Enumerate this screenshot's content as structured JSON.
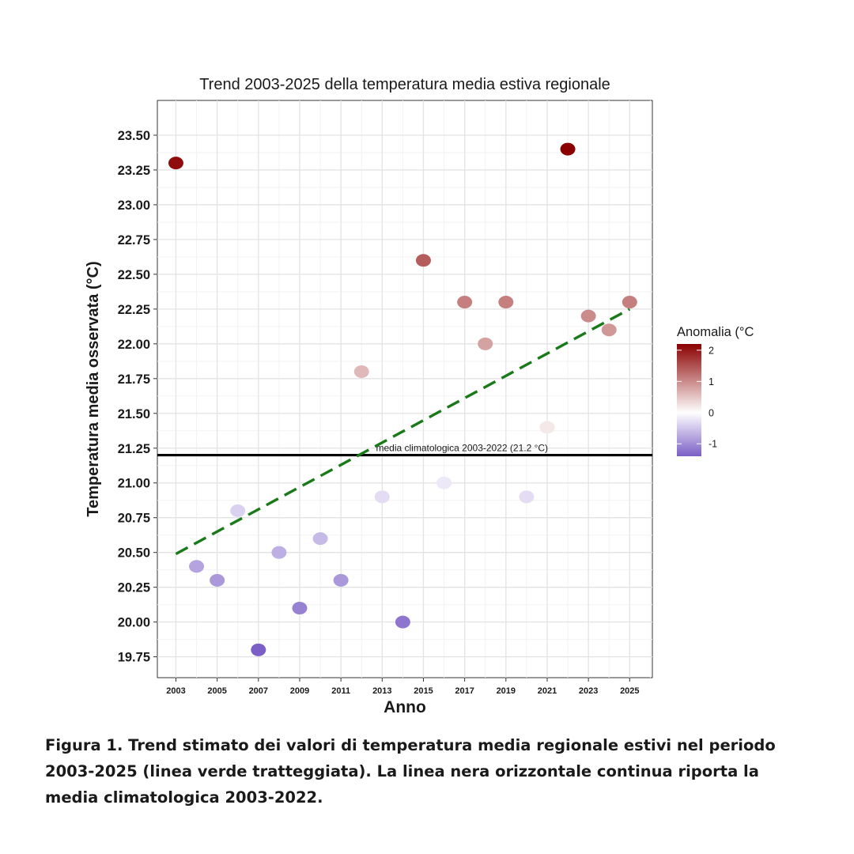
{
  "chart_data": {
    "type": "scatter",
    "title": "Trend 2003-2025 della temperatura media estiva regionale",
    "xlabel": "Anno",
    "ylabel": "Temperatura media osservata (°C)",
    "xlim": [
      2002.1,
      2026.1
    ],
    "ylim": [
      19.6,
      23.75
    ],
    "x_ticks": [
      2003,
      2005,
      2007,
      2009,
      2011,
      2013,
      2015,
      2017,
      2019,
      2021,
      2023,
      2025
    ],
    "y_ticks": [
      19.75,
      20.0,
      20.25,
      20.5,
      20.75,
      21.0,
      21.25,
      21.5,
      21.75,
      22.0,
      22.25,
      22.5,
      22.75,
      23.0,
      23.25,
      23.5
    ],
    "y_tick_labels": [
      "19.75",
      "20.00",
      "20.25",
      "20.50",
      "20.75",
      "21.00",
      "21.25",
      "21.50",
      "21.75",
      "22.00",
      "22.25",
      "22.50",
      "22.75",
      "23.00",
      "23.25",
      "23.50"
    ],
    "grid": true,
    "x": [
      2003,
      2004,
      2005,
      2006,
      2007,
      2008,
      2009,
      2010,
      2011,
      2012,
      2013,
      2014,
      2015,
      2016,
      2017,
      2018,
      2019,
      2020,
      2021,
      2022,
      2023,
      2024,
      2025
    ],
    "y": [
      23.3,
      20.4,
      20.3,
      20.8,
      19.8,
      20.5,
      20.1,
      20.6,
      20.3,
      21.8,
      20.9,
      20.0,
      22.6,
      21.0,
      22.3,
      22.0,
      22.3,
      20.9,
      21.4,
      23.4,
      22.2,
      22.1,
      22.3
    ],
    "reference_line": {
      "y": 21.2,
      "label": "media climatologica 2003-2022 (21.2 °C)",
      "color": "#000000"
    },
    "trend_line": {
      "x": [
        2003,
        2025
      ],
      "y": [
        20.49,
        22.25
      ],
      "color": "#1a7a1a",
      "style": "dashed"
    },
    "colorbar": {
      "title": "Anomalia (°C",
      "ticks": [
        2,
        1,
        0,
        -1
      ],
      "range": [
        -1.4,
        2.2
      ],
      "colors": {
        "low": "#7b5ec6",
        "mid": "#ffffff",
        "high": "#8b0000"
      },
      "placement": "right"
    }
  },
  "caption": "Figura 1. Trend stimato dei valori di temperatura media regionale estivi nel periodo 2003-2025 (linea verde tratteggiata). La linea nera orizzontale continua riporta la media climatologica 2003-2022."
}
